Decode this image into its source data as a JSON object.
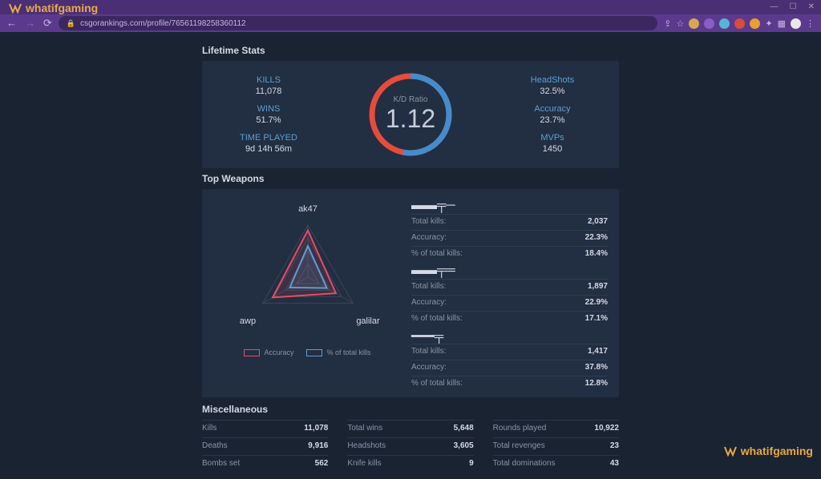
{
  "browser": {
    "url": "csgorankings.com/profile/76561198258360112",
    "watermark": "whatifgaming"
  },
  "sections": {
    "lifetime": "Lifetime Stats",
    "weapons": "Top Weapons",
    "misc": "Miscellaneous"
  },
  "lifetime": {
    "left": [
      {
        "label": "KILLS",
        "value": "11,078"
      },
      {
        "label": "WINS",
        "value": "51.7%"
      },
      {
        "label": "TIME PLAYED",
        "value": "9d 14h 56m"
      }
    ],
    "right": [
      {
        "label": "HeadShots",
        "value": "32.5%"
      },
      {
        "label": "Accuracy",
        "value": "23.7%"
      },
      {
        "label": "MVPs",
        "value": "1450"
      }
    ],
    "kd": {
      "label": "K/D Ratio",
      "value": "1.12",
      "ring_color_a": "#448ccb",
      "ring_color_b": "#e64c3c",
      "ring_split": 0.53
    }
  },
  "radar": {
    "axes": [
      "ak47",
      "galilar",
      "awp"
    ],
    "series": [
      {
        "name": "Accuracy",
        "color": "#e64c65",
        "values": [
          0.9,
          0.62,
          0.78
        ]
      },
      {
        "name": "% of total kills",
        "color": "#5ba0d0",
        "values": [
          0.6,
          0.42,
          0.4
        ]
      }
    ]
  },
  "weapons": [
    {
      "stats": [
        {
          "label": "Total kills:",
          "value": "2,037"
        },
        {
          "label": "Accuracy:",
          "value": "22.3%"
        },
        {
          "label": "% of total kills:",
          "value": "18.4%"
        }
      ]
    },
    {
      "stats": [
        {
          "label": "Total kills:",
          "value": "1,897"
        },
        {
          "label": "Accuracy:",
          "value": "22.9%"
        },
        {
          "label": "% of total kills:",
          "value": "17.1%"
        }
      ]
    },
    {
      "stats": [
        {
          "label": "Total kills:",
          "value": "1,417"
        },
        {
          "label": "Accuracy:",
          "value": "37.8%"
        },
        {
          "label": "% of total kills:",
          "value": "12.8%"
        }
      ]
    }
  ],
  "misc": [
    [
      {
        "label": "Kills",
        "value": "11,078"
      },
      {
        "label": "Total wins",
        "value": "5,648"
      },
      {
        "label": "Rounds played",
        "value": "10,922"
      }
    ],
    [
      {
        "label": "Deaths",
        "value": "9,916"
      },
      {
        "label": "Headshots",
        "value": "3,605"
      },
      {
        "label": "Total revenges",
        "value": "23"
      }
    ],
    [
      {
        "label": "Bombs set",
        "value": "562"
      },
      {
        "label": "Knife kills",
        "value": "9"
      },
      {
        "label": "Total dominations",
        "value": "43"
      }
    ]
  ],
  "colors": {
    "panel_bg": "#222e42",
    "page_bg": "#1a2332",
    "text_muted": "#8a94a8",
    "text_bright": "#d5dae5",
    "accent_blue": "#5ba0d0"
  }
}
